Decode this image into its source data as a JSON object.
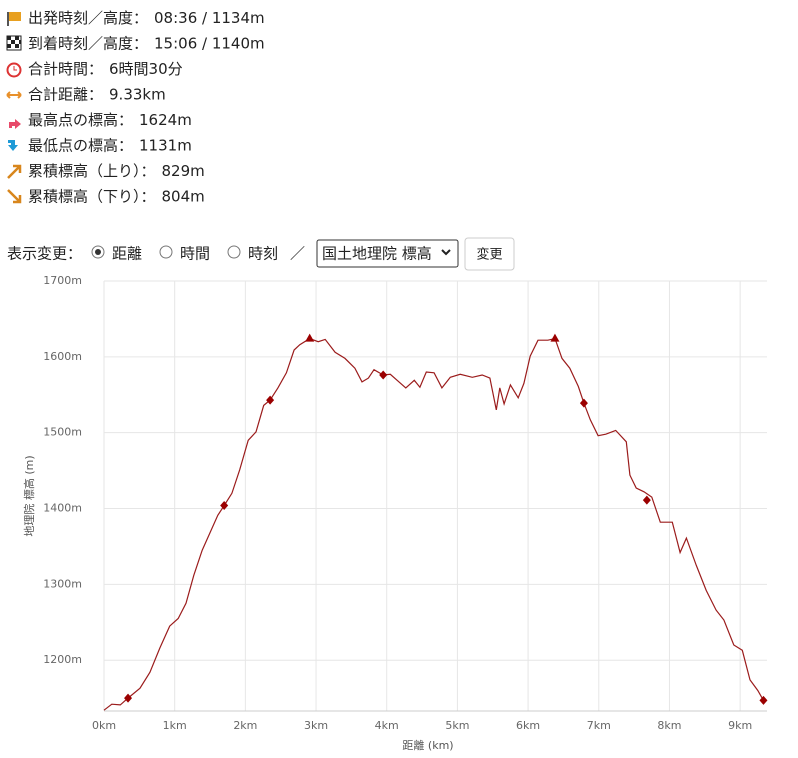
{
  "stats": [
    {
      "label": "出発時刻／高度：",
      "value": "08:36 / 1134m"
    },
    {
      "label": "到着時刻／高度：",
      "value": "15:06 / 1140m"
    },
    {
      "label": "合計時間：",
      "value": "6時間30分"
    },
    {
      "label": "合計距離：",
      "value": "9.33km"
    },
    {
      "label": "最高点の標高：",
      "value": "1624m"
    },
    {
      "label": "最低点の標高：",
      "value": "1131m"
    },
    {
      "label": "累積標高（上り）：",
      "value": "829m"
    },
    {
      "label": "累積標高（下り）：",
      "value": "804m"
    }
  ],
  "controls": {
    "label": "表示変更：",
    "options": [
      "距離",
      "時間",
      "時刻"
    ],
    "separator": "／",
    "select": "国土地理院 標高",
    "button": "変更"
  },
  "chart_data": {
    "type": "line",
    "xlabel": "距離 (km)",
    "ylabel": "地理院 標高 (m)",
    "xlim": [
      0,
      9.38
    ],
    "ylim": [
      1133,
      1700
    ],
    "xticks": [
      {
        "value": 0,
        "label": "0km"
      },
      {
        "value": 1,
        "label": "1km"
      },
      {
        "value": 2,
        "label": "2km"
      },
      {
        "value": 3,
        "label": "3km"
      },
      {
        "value": 4,
        "label": "4km"
      },
      {
        "value": 5,
        "label": "5km"
      },
      {
        "value": 6,
        "label": "6km"
      },
      {
        "value": 7,
        "label": "7km"
      },
      {
        "value": 8,
        "label": "8km"
      },
      {
        "value": 9,
        "label": "9km"
      }
    ],
    "yticks": [
      {
        "value": 1200,
        "label": "1200m"
      },
      {
        "value": 1300,
        "label": "1300m"
      },
      {
        "value": 1400,
        "label": "1400m"
      },
      {
        "value": 1500,
        "label": "1500m"
      },
      {
        "value": 1600,
        "label": "1600m"
      },
      {
        "value": 1700,
        "label": "1700m"
      }
    ],
    "grid": true,
    "series": [
      {
        "color": "#9b1c1c",
        "x": [
          0,
          0.11,
          0.23,
          0.34,
          0.51,
          0.65,
          0.79,
          0.93,
          1.05,
          1.16,
          1.27,
          1.39,
          1.5,
          1.61,
          1.7,
          1.81,
          1.92,
          2.04,
          2.15,
          2.26,
          2.35,
          2.46,
          2.58,
          2.69,
          2.77,
          2.91,
          3.03,
          3.13,
          3.27,
          3.41,
          3.55,
          3.65,
          3.74,
          3.82,
          3.95,
          4.05,
          4.16,
          4.27,
          4.39,
          4.47,
          4.56,
          4.67,
          4.78,
          4.9,
          5.04,
          5.21,
          5.35,
          5.46,
          5.55,
          5.6,
          5.66,
          5.75,
          5.86,
          5.94,
          6.03,
          6.14,
          6.28,
          6.38,
          6.48,
          6.59,
          6.71,
          6.79,
          6.88,
          6.99,
          7.1,
          7.24,
          7.39,
          7.44,
          7.53,
          7.64,
          7.75,
          7.87,
          8.04,
          8.15,
          8.24,
          8.38,
          8.52,
          8.66,
          8.77,
          8.91,
          9.03,
          9.14,
          9.25,
          9.33
        ],
        "values": [
          1134,
          1142,
          1141,
          1150,
          1163,
          1184,
          1216,
          1245,
          1255,
          1275,
          1312,
          1345,
          1368,
          1391,
          1404,
          1420,
          1451,
          1490,
          1501,
          1536,
          1543,
          1559,
          1579,
          1609,
          1616,
          1624,
          1620,
          1623,
          1606,
          1598,
          1585,
          1567,
          1572,
          1583,
          1576,
          1577,
          1568,
          1559,
          1569,
          1560,
          1580,
          1579,
          1559,
          1573,
          1577,
          1573,
          1576,
          1572,
          1530,
          1559,
          1538,
          1563,
          1546,
          1565,
          1601,
          1622,
          1622,
          1624,
          1598,
          1585,
          1561,
          1539,
          1517,
          1496,
          1498,
          1503,
          1488,
          1444,
          1427,
          1422,
          1415,
          1382,
          1382,
          1342,
          1361,
          1325,
          1292,
          1266,
          1253,
          1220,
          1213,
          1174,
          1160,
          1147
        ]
      }
    ],
    "markers": [
      {
        "shape": "triangle",
        "color": "#9b0000",
        "x": [
          2.91,
          6.38
        ],
        "values": [
          1624,
          1624
        ]
      },
      {
        "shape": "diamond",
        "color": "#9b0000",
        "x": [
          0.34,
          1.7,
          2.35,
          3.95,
          6.79,
          7.68,
          9.33
        ],
        "values": [
          1150,
          1404,
          1543,
          1576,
          1539,
          1411,
          1147
        ]
      }
    ]
  }
}
